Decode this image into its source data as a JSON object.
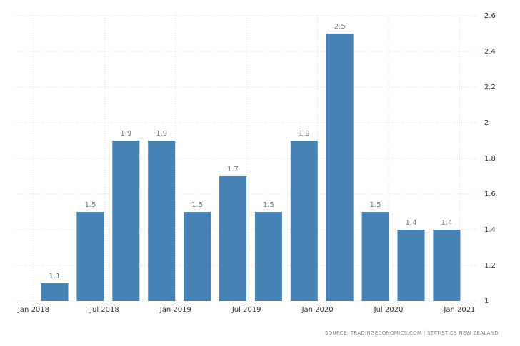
{
  "chart_data": {
    "type": "bar",
    "categories": [
      null,
      null,
      null,
      null,
      null,
      null,
      null,
      null,
      null,
      null,
      null,
      null
    ],
    "values": [
      1.1,
      1.5,
      1.9,
      1.9,
      1.5,
      1.7,
      1.5,
      1.9,
      2.5,
      1.5,
      1.4,
      1.4
    ],
    "color": "#4682b4",
    "xtick_labels": [
      "Jan 2018",
      "Jul 2018",
      "Jan 2019",
      "Jul 2019",
      "Jan 2020",
      "Jul 2020",
      "Jan 2021"
    ],
    "ylim": [
      1,
      2.6
    ],
    "yticks": [
      1,
      1.2,
      1.4,
      1.6,
      1.8,
      2,
      2.2,
      2.4,
      2.6
    ],
    "grid": true,
    "source": "SOURCE: TRADINGECONOMICS.COM | STATISTICS NEW ZEALAND"
  }
}
